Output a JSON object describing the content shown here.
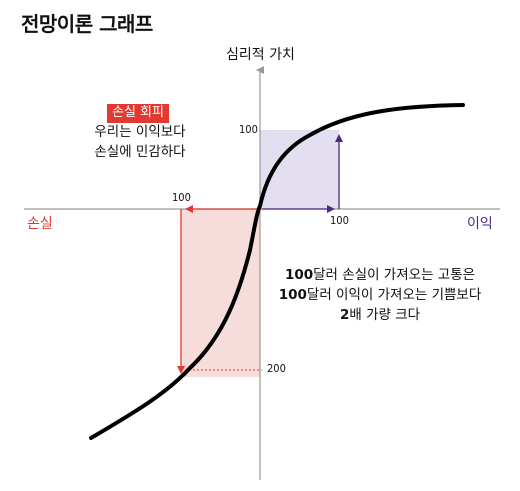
{
  "title": "전망이론 그래프",
  "axes": {
    "y_label": "심리적 가치",
    "x_negative_label": "손실",
    "x_positive_label": "이익"
  },
  "ticks": {
    "gain_value": "100",
    "gain_amount": "100",
    "loss_amount": "100",
    "loss_value": "200"
  },
  "loss_aversion": {
    "badge": "손실 회피",
    "line1": "우리는 이익보다",
    "line2": "손실에 민감하다"
  },
  "explanation": {
    "line1_num": "100",
    "line1_text": "달러 손실이 가져오는 고통은",
    "line2_num": "100",
    "line2_text": "달러 이익이 가져오는 기쁨보다",
    "line3_num": "2",
    "line3_text": "배 가량 크다"
  },
  "colors": {
    "loss": "#e23a32",
    "gain": "#4b2a86",
    "loss_fill": "#f7dcdc",
    "gain_fill": "#e3def0",
    "axis": "#999999",
    "curve": "#000000"
  }
}
